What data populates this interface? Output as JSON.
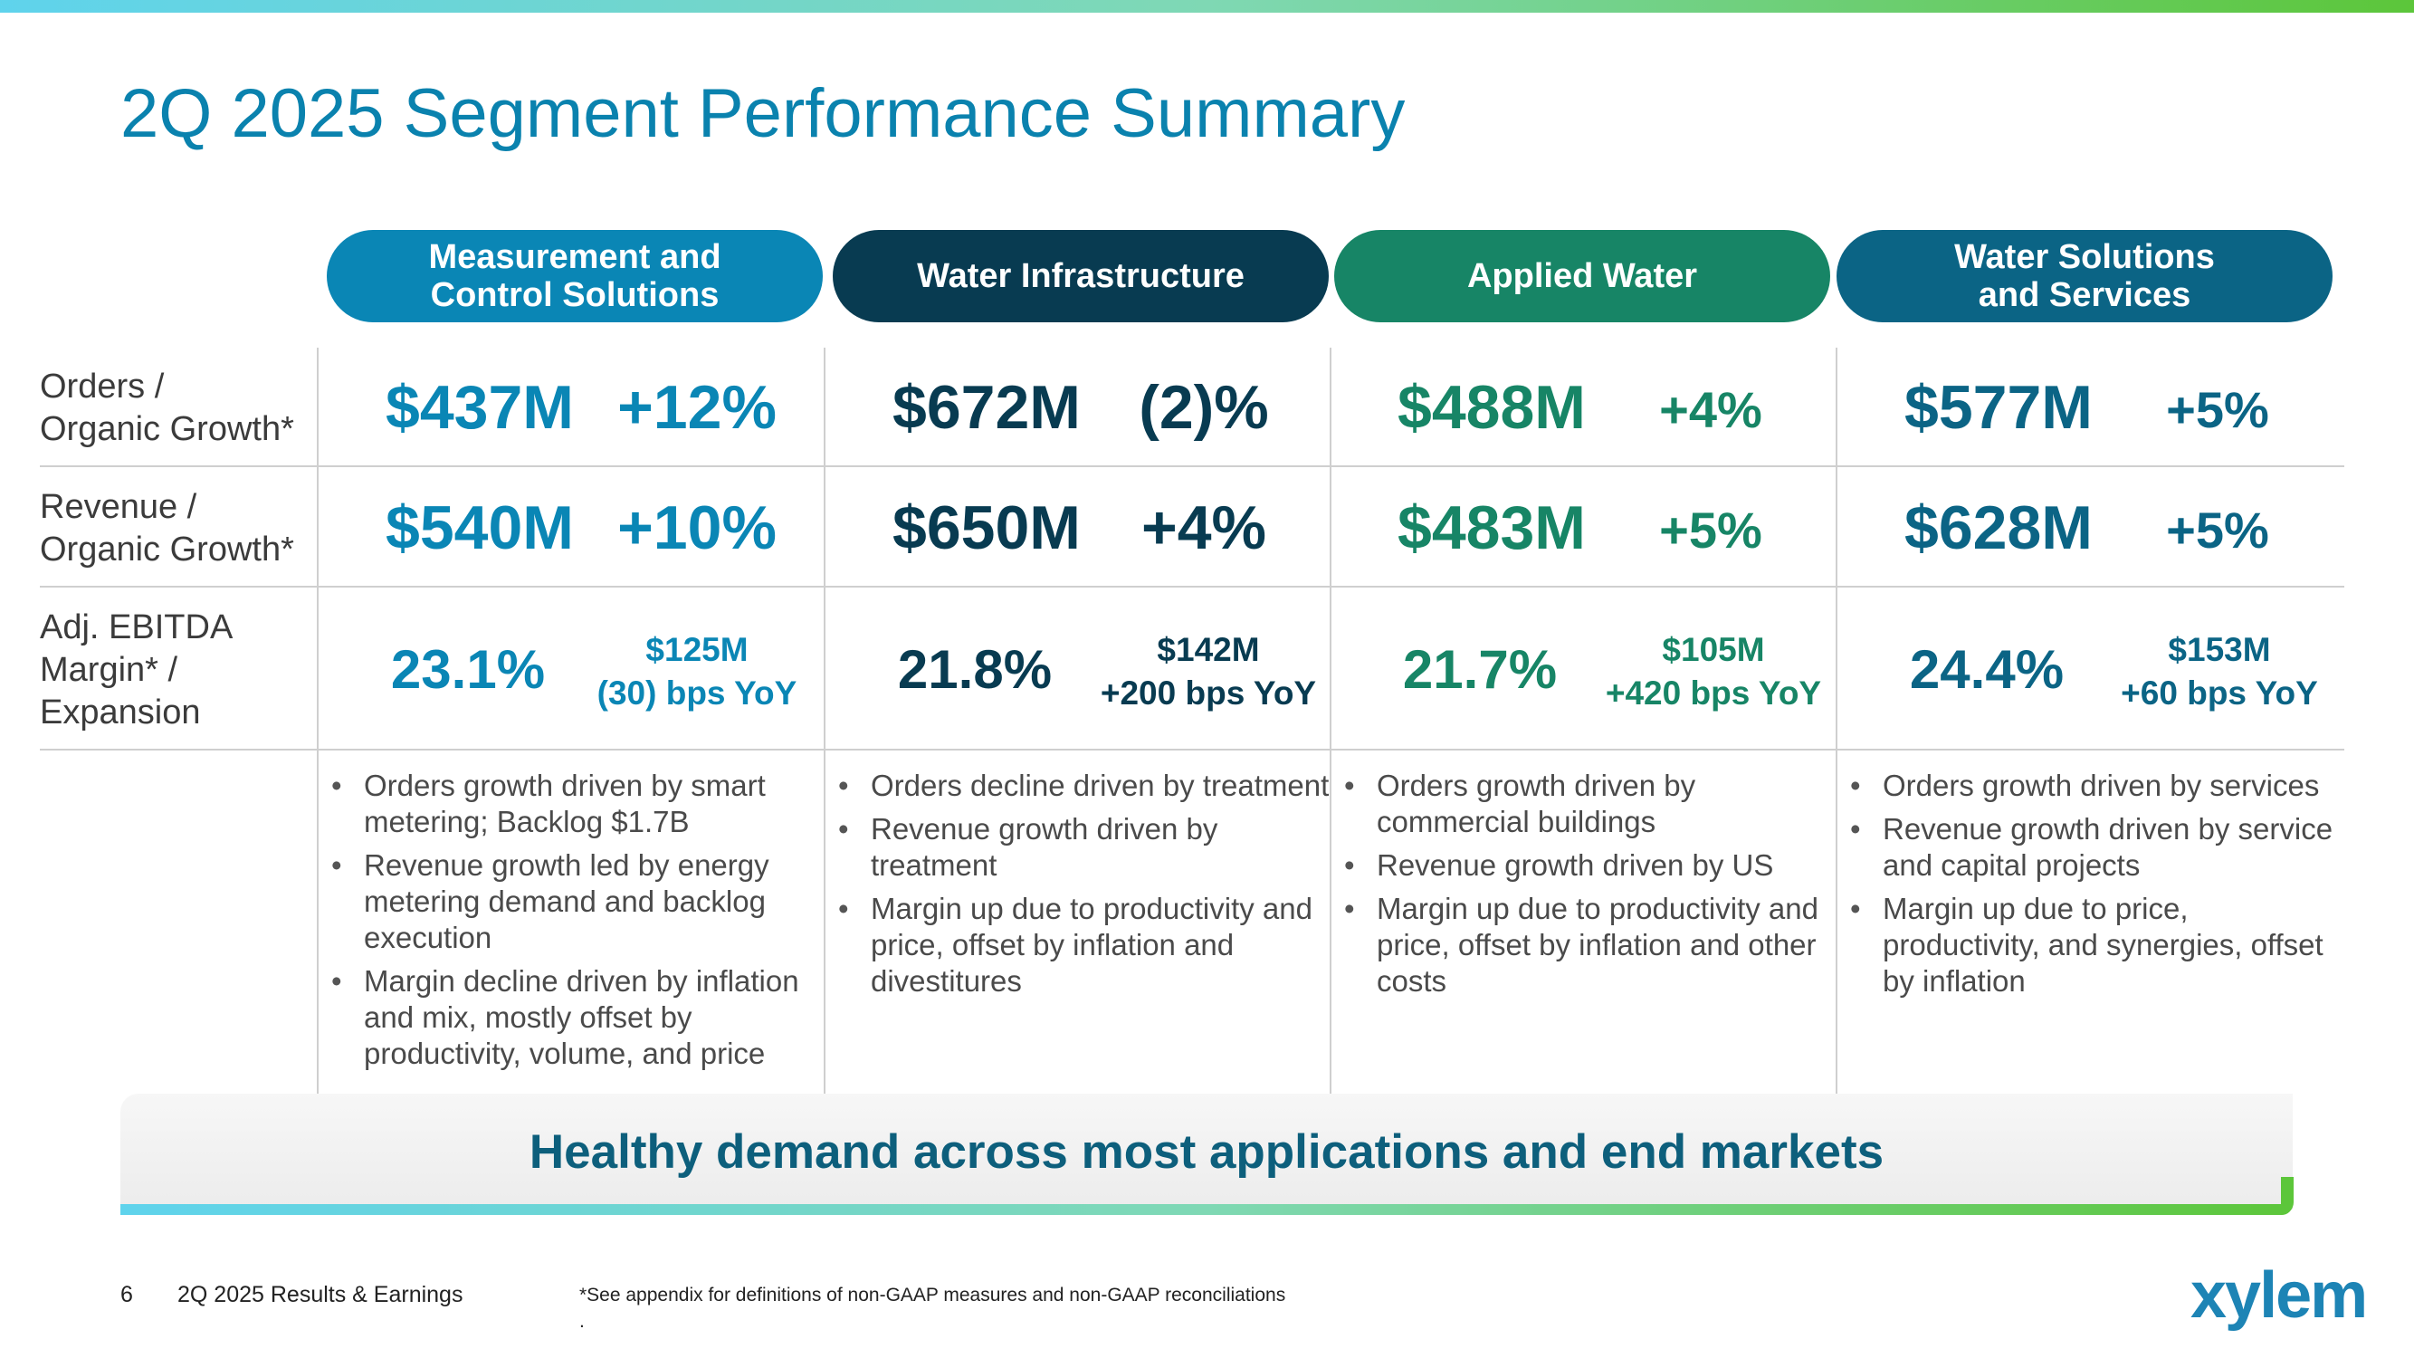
{
  "title": "2Q 2025 Segment Performance Summary",
  "colors": {
    "mcs": "#0a86b5",
    "wi": "#083b51",
    "aw": "#178566",
    "wss": "#0b6485",
    "title": "#0a82ae"
  },
  "row_labels": {
    "orders": "Orders /\nOrganic Growth*",
    "revenue": "Revenue /\nOrganic Growth*",
    "ebitda": "Adj. EBITDA\nMargin* /\nExpansion"
  },
  "segments": [
    {
      "name": "Measurement and\nControl Solutions",
      "orders_value": "$437M",
      "orders_growth": "+12%",
      "revenue_value": "$540M",
      "revenue_growth": "+10%",
      "margin": "23.1%",
      "ebitda_value": "$125M",
      "ebitda_change": "(30) bps YoY",
      "bullets": [
        "Orders growth driven by smart metering; Backlog $1.7B",
        "Revenue growth led by energy metering demand and backlog execution",
        "Margin decline driven by inflation and mix, mostly offset by productivity, volume, and price"
      ]
    },
    {
      "name": "Water Infrastructure",
      "orders_value": "$672M",
      "orders_growth": "(2)%",
      "revenue_value": "$650M",
      "revenue_growth": "+4%",
      "margin": "21.8%",
      "ebitda_value": "$142M",
      "ebitda_change": "+200 bps YoY",
      "bullets": [
        "Orders decline driven by treatment",
        "Revenue growth driven by treatment",
        "Margin up due to productivity and price, offset by inflation and divestitures"
      ]
    },
    {
      "name": "Applied Water",
      "orders_value": "$488M",
      "orders_growth": "+4%",
      "revenue_value": "$483M",
      "revenue_growth": "+5%",
      "margin": "21.7%",
      "ebitda_value": "$105M",
      "ebitda_change": "+420 bps YoY",
      "bullets": [
        "Orders growth driven by commercial buildings",
        "Revenue growth driven by US",
        "Margin up due to productivity and price, offset by inflation and other costs"
      ]
    },
    {
      "name": "Water Solutions\nand Services",
      "orders_value": "$577M",
      "orders_growth": "+5%",
      "revenue_value": "$628M",
      "revenue_growth": "+5%",
      "margin": "24.4%",
      "ebitda_value": "$153M",
      "ebitda_change": "+60 bps YoY",
      "bullets": [
        "Orders growth driven by services",
        "Revenue growth driven by service and capital projects",
        "Margin up due to price, productivity, and synergies, offset by inflation"
      ]
    }
  ],
  "banner": "Healthy demand across most applications and end markets",
  "footer": {
    "page_number": "6",
    "deck_title": "2Q 2025 Results & Earnings",
    "footnote": "*See appendix for definitions of non-GAAP measures and non-GAAP reconciliations",
    "footnote_dot": "."
  },
  "logo": "xylem"
}
